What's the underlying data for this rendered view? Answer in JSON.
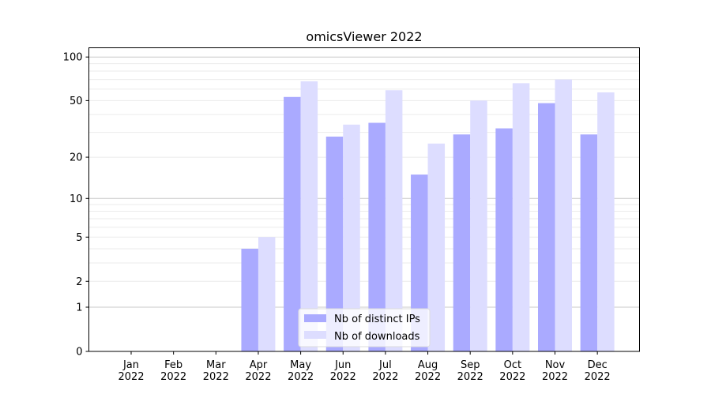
{
  "chart_data": {
    "type": "bar",
    "title": "omicsViewer 2022",
    "xlabel": "",
    "ylabel": "",
    "yscale": "log(1+y)",
    "ylim": [
      0,
      110
    ],
    "yticks": [
      0,
      1,
      2,
      5,
      10,
      20,
      50,
      100
    ],
    "grid": true,
    "legend_position": "bottom-center",
    "categories": [
      "Jan\n2022",
      "Feb\n2022",
      "Mar\n2022",
      "Apr\n2022",
      "May\n2022",
      "Jun\n2022",
      "Jul\n2022",
      "Aug\n2022",
      "Sep\n2022",
      "Oct\n2022",
      "Nov\n2022",
      "Dec\n2022"
    ],
    "series": [
      {
        "name": "Nb of distinct IPs",
        "color": "#aaaaff",
        "values": [
          0,
          0,
          0,
          4,
          53,
          28,
          35,
          15,
          29,
          32,
          48,
          29
        ]
      },
      {
        "name": "Nb of downloads",
        "color": "#ddddff",
        "values": [
          0,
          0,
          0,
          5,
          68,
          34,
          59,
          25,
          50,
          66,
          70,
          57
        ]
      }
    ]
  }
}
